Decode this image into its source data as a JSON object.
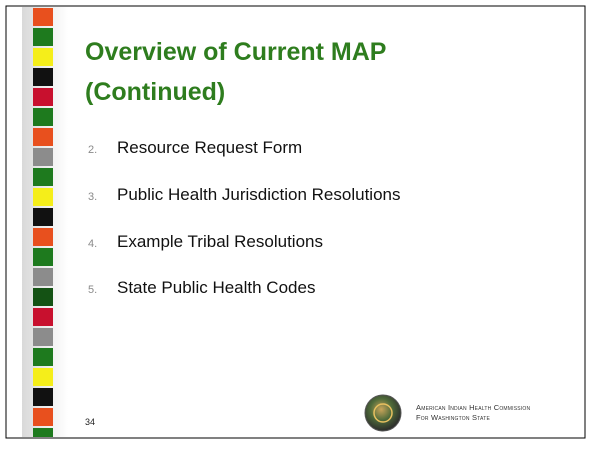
{
  "slide": {
    "title_lines": [
      "Overview of Current MAP",
      "(Continued)"
    ],
    "items": [
      {
        "number": "2.",
        "text": "Resource Request Form"
      },
      {
        "number": "3.",
        "text": "Public Health Jurisdiction Resolutions"
      },
      {
        "number": "4.",
        "text": "Example Tribal Resolutions"
      },
      {
        "number": "5.",
        "text": "State Public Health Codes"
      }
    ],
    "page_number": "34",
    "org_lines": [
      "American Indian Health Commission",
      "For Washington State"
    ]
  }
}
